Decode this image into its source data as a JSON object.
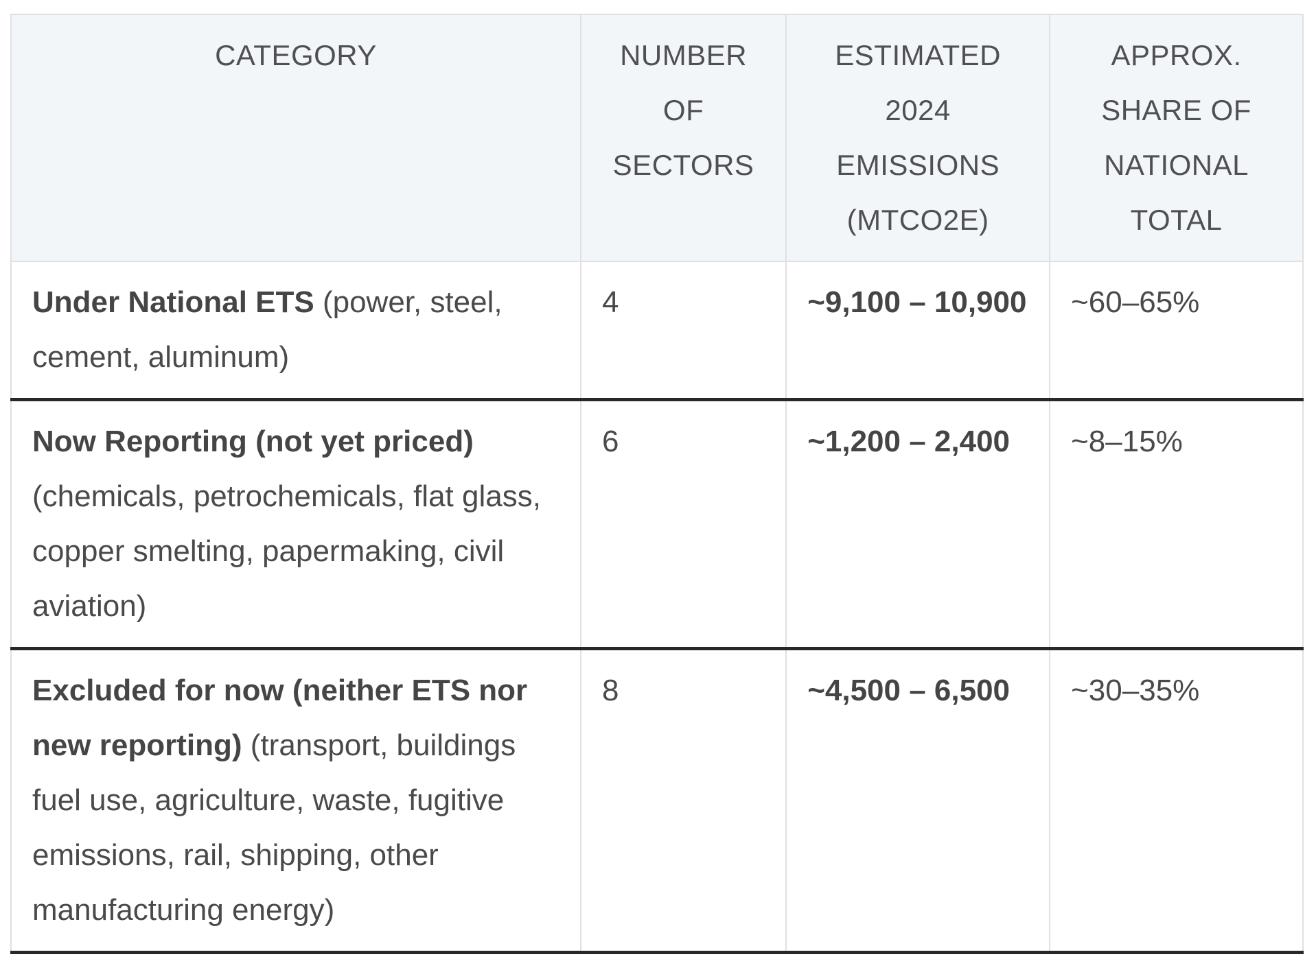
{
  "chart_data": {
    "type": "table",
    "columns": [
      "CATEGORY",
      "NUMBER OF SECTORS",
      "ESTIMATED 2024 EMISSIONS (MTCO2E)",
      "APPROX. SHARE OF NATIONAL TOTAL"
    ],
    "rows": [
      {
        "category": {
          "bold": "Under National ETS",
          "normal": " (power, steel, cement, aluminum)"
        },
        "number_of_sectors": "4",
        "estimated_2024_emissions_mtco2e": "~9,100 – 10,900",
        "approx_share_of_national_total": "~60–65%"
      },
      {
        "category": {
          "bold": "Now Reporting (not yet priced)",
          "normal": " (chemicals, petrochemicals, flat glass, copper smelting, papermaking, civil aviation)"
        },
        "number_of_sectors": "6",
        "estimated_2024_emissions_mtco2e": "~1,200 – 2,400",
        "approx_share_of_national_total": "~8–15%"
      },
      {
        "category": {
          "bold": "Excluded for now (neither ETS nor new reporting)",
          "normal": " (transport, buildings fuel use, agriculture, waste, fugitive emissions, rail, shipping, other manufacturing energy)"
        },
        "number_of_sectors": "8",
        "estimated_2024_emissions_mtco2e": "~4,500 – 6,500",
        "approx_share_of_national_total": "~30–35%"
      }
    ],
    "layout": {
      "header_background": "#f3f6f9",
      "dark_row_divider": "#27272d",
      "light_grid_line": "#e0e0e2",
      "text_color": "#4a4a4b"
    }
  }
}
